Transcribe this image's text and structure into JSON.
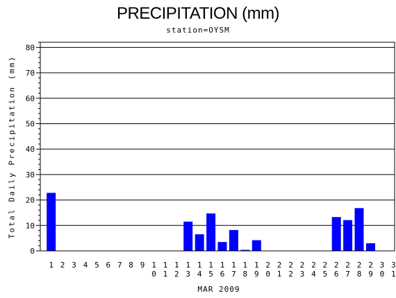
{
  "chart_data": {
    "type": "bar",
    "title": "PRECIPITATION (mm)",
    "subtitle": "station=OYSM",
    "xlabel": "MAR 2009",
    "ylabel": "Total Daily Precipitation (mm)",
    "ylim": [
      0,
      82
    ],
    "yticks": [
      0,
      10,
      20,
      30,
      40,
      50,
      60,
      70,
      80
    ],
    "grid": true,
    "categories": [
      "1",
      "2",
      "3",
      "4",
      "5",
      "6",
      "7",
      "8",
      "9",
      "10",
      "11",
      "12",
      "13",
      "14",
      "15",
      "16",
      "17",
      "18",
      "19",
      "20",
      "21",
      "22",
      "23",
      "24",
      "25",
      "26",
      "27",
      "28",
      "29",
      "30",
      "31"
    ],
    "values": [
      22.8,
      0,
      0,
      0,
      0,
      0,
      0,
      0,
      0,
      0,
      0,
      0,
      11.5,
      6.5,
      14.7,
      3.5,
      8.2,
      0.4,
      4.2,
      0,
      0,
      0,
      0,
      0,
      0,
      13.3,
      12.1,
      16.8,
      3.0,
      0,
      0
    ],
    "bar_color": "#0000ff"
  }
}
